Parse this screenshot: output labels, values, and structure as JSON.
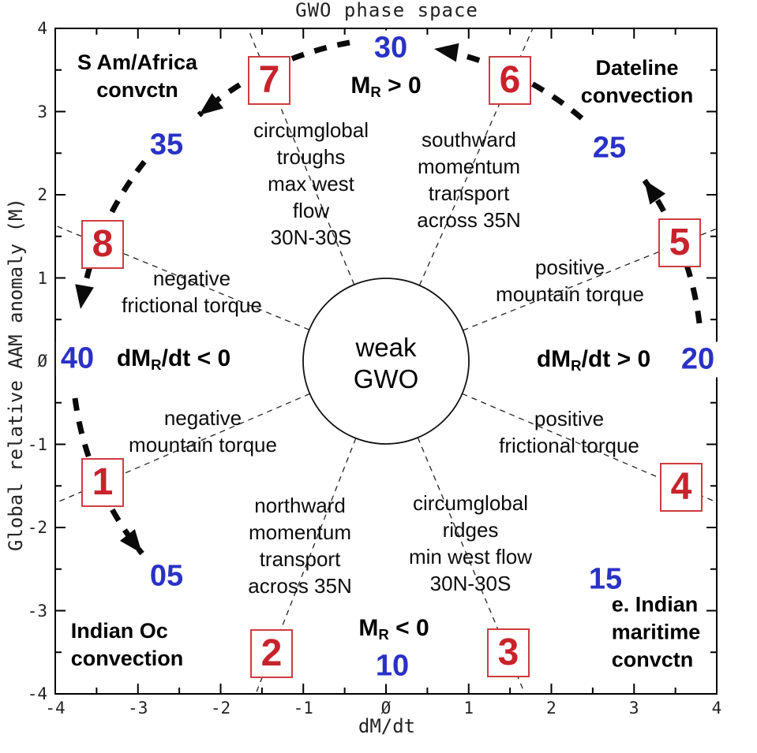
{
  "title": "GWO phase space",
  "axes": {
    "x": {
      "label": "dM/dt",
      "range": [
        -4,
        4
      ],
      "tick_labels": [
        "-4",
        "-3",
        "-2",
        "-1",
        "Ø",
        "1",
        "2",
        "3",
        "4"
      ]
    },
    "y": {
      "label": "Global relative AAM anomaly (M)",
      "range": [
        -4,
        4
      ],
      "tick_labels": [
        "4",
        "3",
        "2",
        "1",
        "Ø",
        "-1",
        "-2",
        "-3",
        "-4"
      ]
    }
  },
  "center": {
    "label": "weak\nGWO"
  },
  "phases": [
    {
      "num": "1"
    },
    {
      "num": "2"
    },
    {
      "num": "3"
    },
    {
      "num": "4"
    },
    {
      "num": "5"
    },
    {
      "num": "6"
    },
    {
      "num": "7"
    },
    {
      "num": "8"
    }
  ],
  "days": [
    {
      "text": "05"
    },
    {
      "text": "10"
    },
    {
      "text": "15"
    },
    {
      "text": "20"
    },
    {
      "text": "25"
    },
    {
      "text": "30"
    },
    {
      "text": "35"
    },
    {
      "text": "40"
    }
  ],
  "conditions": {
    "mr_pos": {
      "pre": "M",
      "sub": "R",
      "post": " > 0"
    },
    "mr_neg": {
      "pre": "M",
      "sub": "R",
      "post": " < 0"
    },
    "dmr_neg": {
      "pre": "dM",
      "sub": "R",
      "post": "/dt < 0"
    },
    "dmr_pos": {
      "pre": "dM",
      "sub": "R",
      "post": "/dt > 0"
    }
  },
  "corners": {
    "top_left": "S Am/Africa\nconvctn",
    "top_right": "Dateline\nconvection",
    "bottom_left": "Indian Oc\nconvection",
    "bottom_right": "e. Indian\nmaritime\nconvctn"
  },
  "annotations": {
    "troughs": "circumglobal\ntroughs\nmax west\nflow\n30N-30S",
    "southward": "southward\nmomentum\ntransport\nacross 35N",
    "neg_friction": "negative\nfrictional torque",
    "pos_mountain": "positive\nmountain torque",
    "neg_mountain": "negative\nmountain torque",
    "pos_friction": "positive\nfrictional torque",
    "northward": "northward\nmomentum\ntransport\nacross 35N",
    "ridges": "circumglobal\nridges\nmin west flow\n30N-30S"
  },
  "colors": {
    "phase_number_red": "#c8232c",
    "phase_box_border_red": "#cf3b42",
    "day_label_blue": "#2a31c6",
    "text_black": "#000000"
  }
}
